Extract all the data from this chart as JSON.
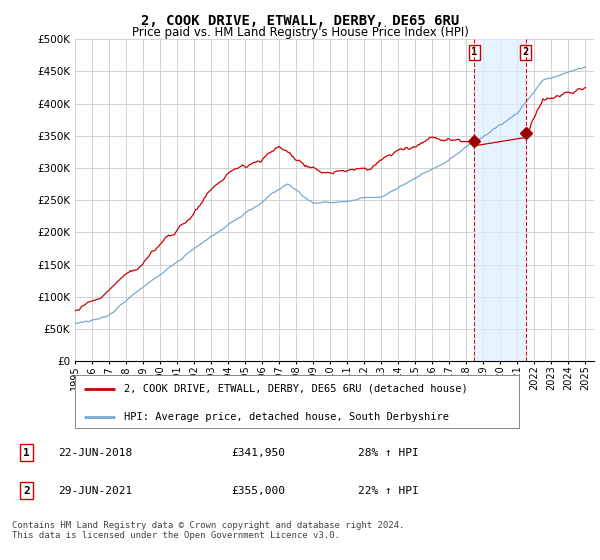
{
  "title": "2, COOK DRIVE, ETWALL, DERBY, DE65 6RU",
  "subtitle": "Price paid vs. HM Land Registry's House Price Index (HPI)",
  "ylim": [
    0,
    500000
  ],
  "yticks": [
    0,
    50000,
    100000,
    150000,
    200000,
    250000,
    300000,
    350000,
    400000,
    450000,
    500000
  ],
  "ytick_labels": [
    "£0",
    "£50K",
    "£100K",
    "£150K",
    "£200K",
    "£250K",
    "£300K",
    "£350K",
    "£400K",
    "£450K",
    "£500K"
  ],
  "xlim_start": 1995.0,
  "xlim_end": 2025.5,
  "background_color": "#ffffff",
  "plot_bg_color": "#ffffff",
  "grid_color": "#cccccc",
  "red_line_color": "#cc0000",
  "blue_line_color": "#7aa8d2",
  "shade_color": "#ddeeff",
  "sale1_year": 2018.47,
  "sale1_price": 341950,
  "sale1_label": "1",
  "sale1_date": "22-JUN-2018",
  "sale1_pct": "28% ↑ HPI",
  "sale2_year": 2021.49,
  "sale2_price": 355000,
  "sale2_label": "2",
  "sale2_date": "29-JUN-2021",
  "sale2_pct": "22% ↑ HPI",
  "marker_color": "#990000",
  "vline_color": "#cc0000",
  "legend_line1": "2, COOK DRIVE, ETWALL, DERBY, DE65 6RU (detached house)",
  "legend_line2": "HPI: Average price, detached house, South Derbyshire",
  "footer": "Contains HM Land Registry data © Crown copyright and database right 2024.\nThis data is licensed under the Open Government Licence v3.0.",
  "title_fontsize": 10,
  "subtitle_fontsize": 8.5,
  "tick_fontsize": 7.5,
  "legend_fontsize": 7.5,
  "table_fontsize": 8,
  "footer_fontsize": 6.5
}
